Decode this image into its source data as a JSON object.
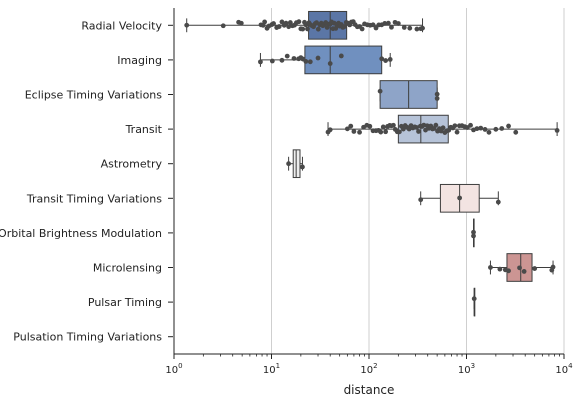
{
  "chart_data": {
    "type": "box",
    "orientation": "horizontal",
    "xlabel": "distance",
    "ylabel": "",
    "x_scale": "log",
    "xlim": [
      1,
      10000
    ],
    "x_ticks": [
      {
        "value": 1,
        "base": "10",
        "exp": "0"
      },
      {
        "value": 10,
        "base": "10",
        "exp": "1"
      },
      {
        "value": 100,
        "base": "10",
        "exp": "2"
      },
      {
        "value": 1000,
        "base": "10",
        "exp": "3"
      },
      {
        "value": 10000,
        "base": "10",
        "exp": "4"
      }
    ],
    "grid": "vertical",
    "categories": [
      "Radial Velocity",
      "Imaging",
      "Eclipse Timing Variations",
      "Transit",
      "Astrometry",
      "Transit Timing Variations",
      "Orbital Brightness Modulation",
      "Microlensing",
      "Pulsar Timing",
      "Pulsation Timing Variations"
    ],
    "boxes": [
      {
        "category": "Radial Velocity",
        "color": "#5b76a6",
        "whisker_low": 1.35,
        "q1": 24,
        "median": 40,
        "q3": 59,
        "whisker_high": 354,
        "points": [
          1.35,
          3.2,
          4.6,
          4.9,
          7.8,
          8.2,
          8.5,
          9.0,
          9.4,
          10.1,
          10.5,
          11.3,
          12.0,
          12.8,
          13.5,
          14.1,
          15.0,
          15.6,
          16.4,
          17.2,
          18.0,
          19.1,
          20.0,
          20.9,
          21.8,
          22.5,
          23.4,
          24.2,
          25.1,
          26.0,
          27.0,
          28.1,
          29.0,
          30.2,
          31.3,
          32.4,
          33.6,
          34.8,
          36.0,
          37.2,
          38.5,
          40.0,
          41.3,
          42.7,
          44.0,
          45.6,
          47.1,
          48.7,
          50.3,
          52.0,
          54.0,
          56.1,
          58.4,
          60.8,
          63.4,
          66.0,
          69.0,
          72.0,
          76.0,
          80.0,
          85.0,
          90.0,
          96.0,
          103.0,
          110.0,
          118.0,
          126.0,
          135.0,
          145.0,
          158.0,
          170.0,
          185.0,
          200.0,
          230.0,
          262.0,
          310.0,
          340.0,
          354.0
        ]
      },
      {
        "category": "Imaging",
        "color": "#7090bf",
        "whisker_low": 7.7,
        "q1": 22,
        "median": 40,
        "q3": 135,
        "whisker_high": 165,
        "points": [
          7.7,
          10.2,
          12.8,
          14.5,
          17.0,
          19.0,
          20.0,
          21.0,
          22.5,
          25.0,
          30.0,
          40.0,
          52.0,
          135.0,
          148.0,
          165.0
        ]
      },
      {
        "category": "Eclipse Timing Variations",
        "color": "#8ea4c8",
        "whisker_low": 130,
        "q1": 130,
        "median": 255,
        "q3": 500,
        "whisker_high": 500,
        "points": [
          130.0,
          500.0,
          500.0
        ]
      },
      {
        "category": "Transit",
        "color": "#b6c3d8",
        "whisker_low": 38,
        "q1": 200,
        "median": 340,
        "q3": 650,
        "whisker_high": 8500,
        "points": [
          38.0,
          40.0,
          60.0,
          65.0,
          70.0,
          80.0,
          88.0,
          95.0,
          102.0,
          110.0,
          118.0,
          125.0,
          132.0,
          140.0,
          148.0,
          155.0,
          163.0,
          170.0,
          178.0,
          186.0,
          195.0,
          205.0,
          215.0,
          225.0,
          235.0,
          246.0,
          258.0,
          270.0,
          282.0,
          295.0,
          308.0,
          322.0,
          336.0,
          350.0,
          365.0,
          380.0,
          396.0,
          412.0,
          430.0,
          448.0,
          466.0,
          485.0,
          505.0,
          527.0,
          550.0,
          575.0,
          600.0,
          628.0,
          658.0,
          690.0,
          725.0,
          760.0,
          800.0,
          845.0,
          900.0,
          960.0,
          1020.0,
          1100.0,
          1180.0,
          1280.0,
          1400.0,
          1550.0,
          1700.0,
          2000.0,
          2300.0,
          2700.0,
          3200.0,
          8500.0
        ]
      },
      {
        "category": "Astrometry",
        "color": "#ededed",
        "whisker_low": 14.98,
        "q1": 16.7,
        "median": 17.9,
        "q3": 19.6,
        "whisker_high": 20.77,
        "points": [
          14.98,
          20.77
        ]
      },
      {
        "category": "Transit Timing Variations",
        "color": "#f3e4e2",
        "whisker_low": 339,
        "q1": 540,
        "median": 850,
        "q3": 1350,
        "whisker_high": 2120,
        "points": [
          339.0,
          850.0,
          2120.0
        ]
      },
      {
        "category": "Orbital Brightness Modulation",
        "color": "#ebcfcb",
        "whisker_low": 1180,
        "q1": 1180,
        "median": 1180,
        "q3": 1180,
        "whisker_high": 1180,
        "points": [
          1180.0,
          1180.0
        ]
      },
      {
        "category": "Microlensing",
        "color": "#cc9593",
        "whisker_low": 1760,
        "q1": 2600,
        "median": 3600,
        "q3": 4700,
        "whisker_high": 7720,
        "points": [
          1760.0,
          2200.0,
          2500.0,
          2700.0,
          3500.0,
          3900.0,
          5000.0,
          7500.0,
          7720.0
        ]
      },
      {
        "category": "Pulsar Timing",
        "color": "#d8a8a5",
        "whisker_low": 1200,
        "q1": 1200,
        "median": 1200,
        "q3": 1200,
        "whisker_high": 1200,
        "points": [
          1200.0
        ]
      },
      {
        "category": "Pulsation Timing Variations",
        "color": "#e0b8b5",
        "whisker_low": null,
        "q1": null,
        "median": null,
        "q3": null,
        "whisker_high": null,
        "points": []
      }
    ]
  }
}
